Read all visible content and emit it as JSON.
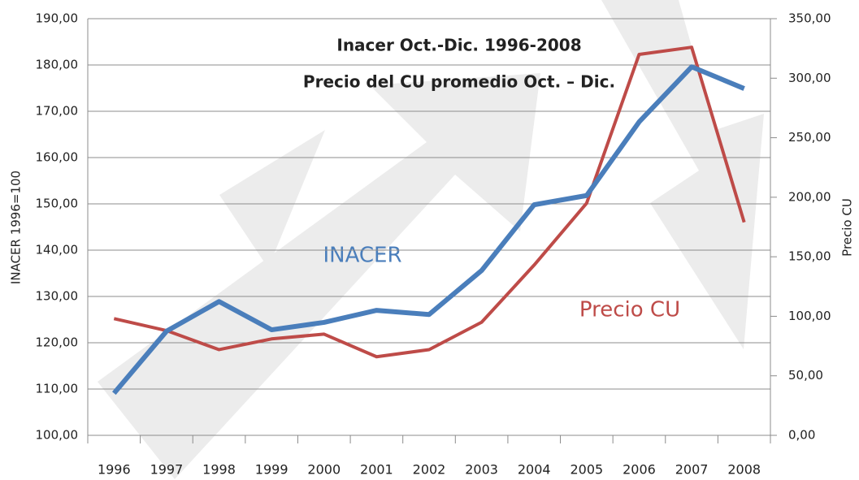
{
  "chart_data": {
    "type": "line",
    "title": "Inacer Oct.-Dic. 1996-2008",
    "subtitle": "Precio del CU promedio Oct. – Dic.",
    "y_label": "INACER 1996=100",
    "y2_label": "Precio CU",
    "annotations": [
      "INACER",
      "Precio CU"
    ],
    "categories": [
      "1996",
      "1997",
      "1998",
      "1999",
      "2000",
      "2001",
      "2002",
      "2003",
      "2004",
      "2005",
      "2006",
      "2007",
      "2008"
    ],
    "series": [
      {
        "name": "INACER",
        "color": "#4a7ebb",
        "values": [
          109.1,
          122.5,
          128.9,
          122.8,
          124.4,
          127.0,
          126.1,
          135.6,
          149.8,
          151.8,
          167.7,
          179.6,
          174.9
        ]
      },
      {
        "name": "Precio CU",
        "color": "#be4b48",
        "axis": "y2",
        "values": [
          98,
          88,
          72,
          81,
          85,
          66,
          72,
          95,
          143,
          195,
          320,
          326,
          179
        ]
      }
    ],
    "ylim": [
      100,
      190
    ],
    "yticks": [
      {
        "value": 100,
        "label": "100,00"
      },
      {
        "value": 110,
        "label": "110,00"
      },
      {
        "value": 120,
        "label": "120,00"
      },
      {
        "value": 130,
        "label": "130,00"
      },
      {
        "value": 140,
        "label": "140,00"
      },
      {
        "value": 150,
        "label": "150,00"
      },
      {
        "value": 160,
        "label": "160,00"
      },
      {
        "value": 170,
        "label": "170,00"
      },
      {
        "value": 180,
        "label": "180,00"
      },
      {
        "value": 190,
        "label": "190,00"
      }
    ],
    "y2lim": [
      0,
      350
    ],
    "y2ticks": [
      {
        "value": 0,
        "label": "0,00"
      },
      {
        "value": 50,
        "label": "50,00"
      },
      {
        "value": 100,
        "label": "100,00"
      },
      {
        "value": 150,
        "label": "150,00"
      },
      {
        "value": 200,
        "label": "200,00"
      },
      {
        "value": 250,
        "label": "250,00"
      },
      {
        "value": 300,
        "label": "300,00"
      },
      {
        "value": 350,
        "label": "350,00"
      }
    ],
    "grid": true
  }
}
